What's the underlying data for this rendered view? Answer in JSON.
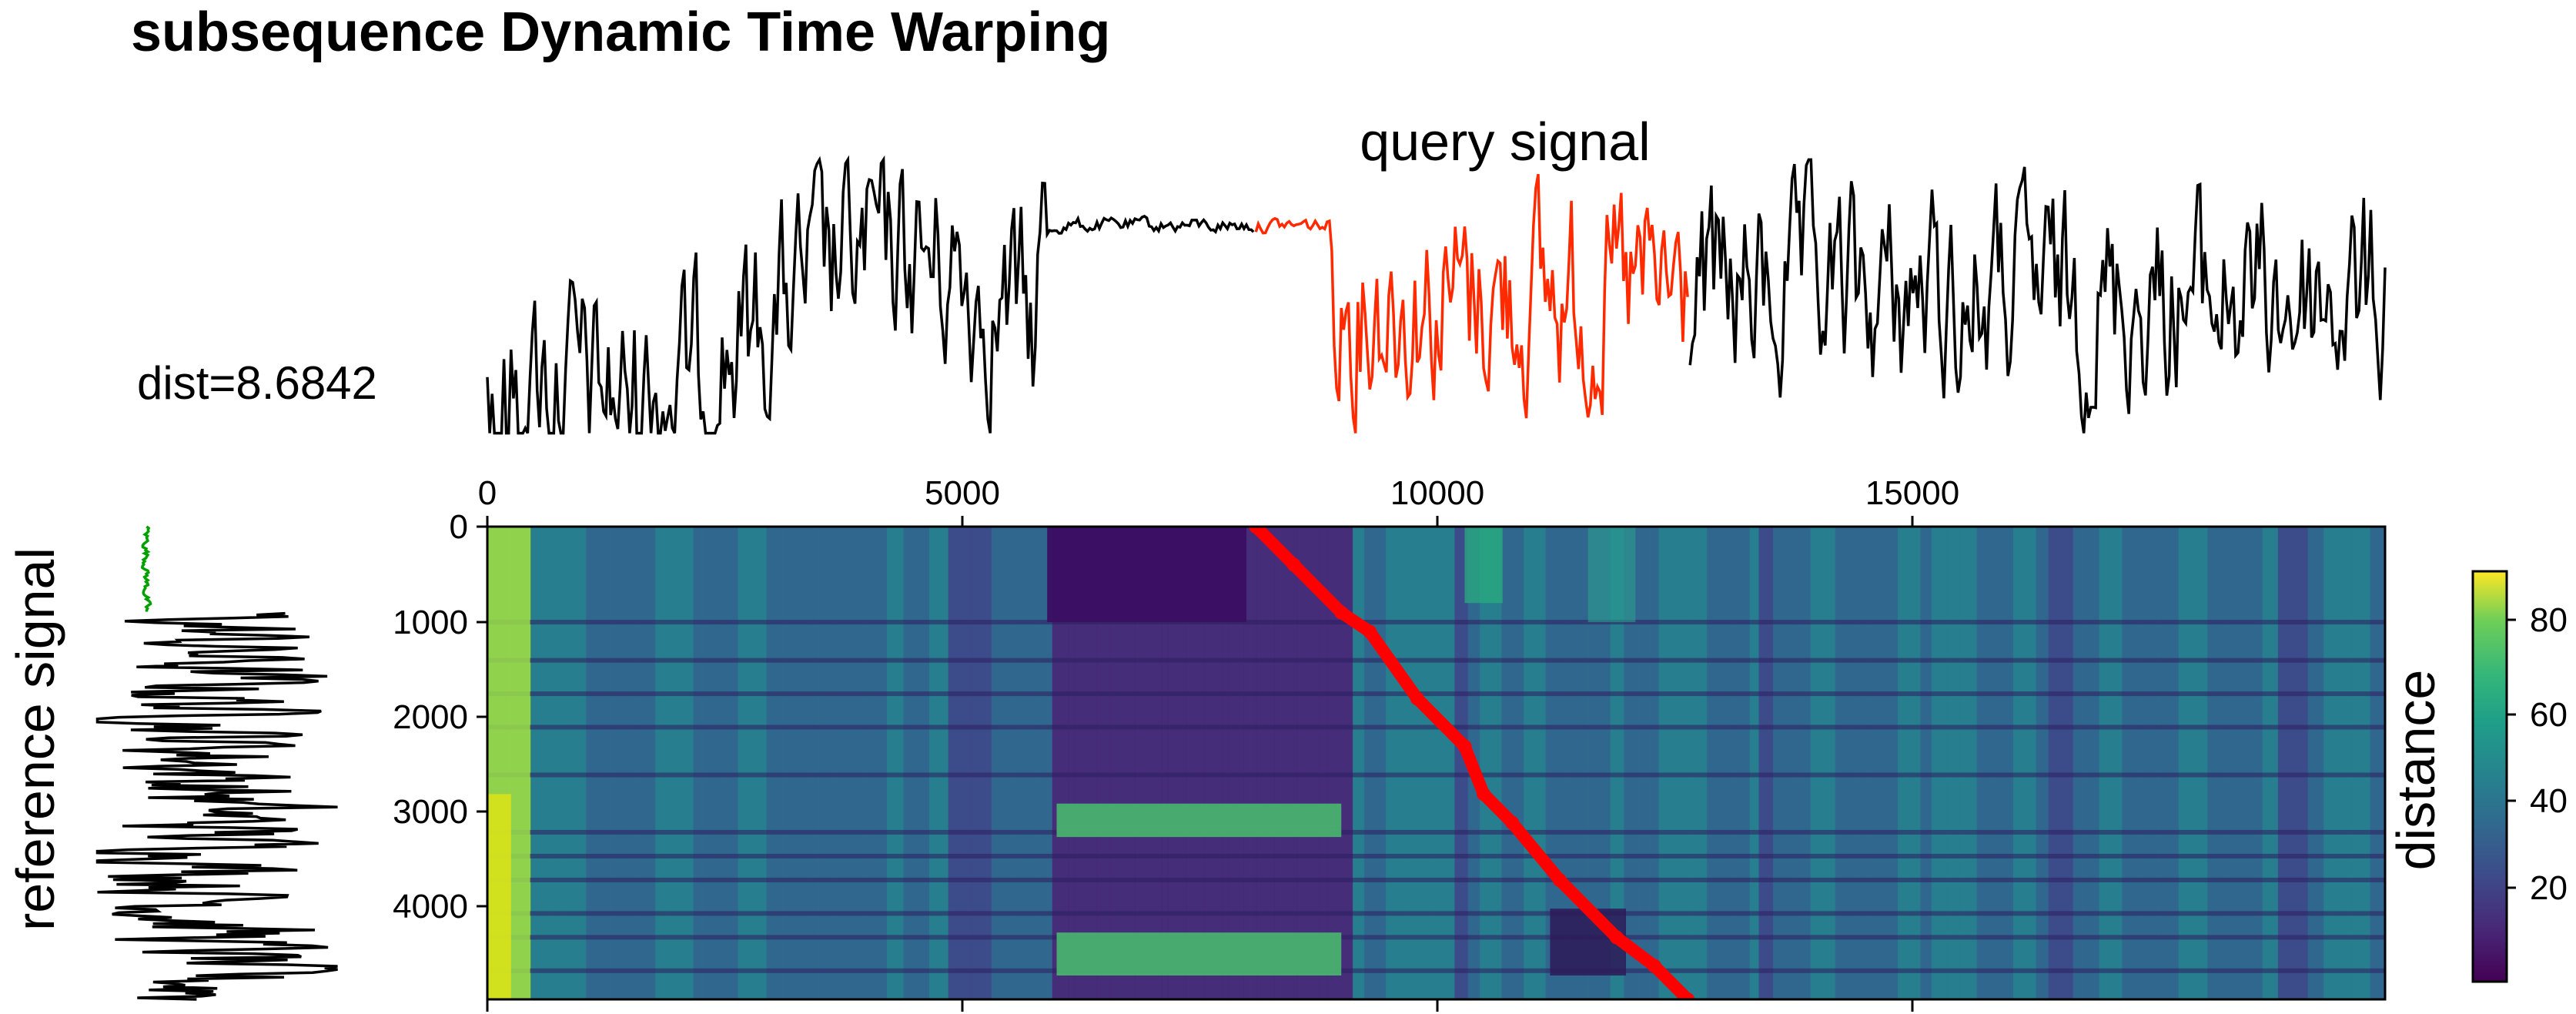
{
  "title": "subsequence Dynamic Time Warping",
  "query_label": "query signal",
  "dist_label": "dist=8.6842",
  "reference_label": "reference signal",
  "colorbar_label": "distance",
  "chart_data": {
    "type": "heatmap",
    "title": "subsequence Dynamic Time Warping",
    "x_axis": {
      "ticks": [
        0,
        5000,
        10000,
        15000
      ],
      "tick_labels": [
        "0",
        "5000",
        "10000",
        "15000"
      ],
      "range": [
        0,
        20000
      ]
    },
    "y_axis": {
      "ticks": [
        0,
        1000,
        2000,
        3000,
        4000
      ],
      "tick_labels": [
        "0",
        "1000",
        "2000",
        "3000",
        "4000"
      ],
      "range": [
        0,
        4950
      ],
      "inverted": true
    },
    "colorbar": {
      "label": "distance",
      "ticks": [
        20,
        40,
        60,
        80
      ],
      "tick_labels": [
        "20",
        "40",
        "60",
        "80"
      ],
      "range": [
        0,
        90
      ],
      "colormap": "viridis"
    },
    "warping_path": {
      "color": "#ff0000",
      "points": [
        [
          8100,
          0
        ],
        [
          8500,
          400
        ],
        [
          9000,
          900
        ],
        [
          9300,
          1100
        ],
        [
          9800,
          1800
        ],
        [
          10300,
          2300
        ],
        [
          10500,
          2800
        ],
        [
          10800,
          3100
        ],
        [
          11300,
          3700
        ],
        [
          11900,
          4300
        ],
        [
          12300,
          4600
        ],
        [
          12650,
          4950
        ]
      ]
    },
    "matched_segment": {
      "start": 8100,
      "end": 12650,
      "color": "#ff2a00"
    },
    "reference_highlight_color": "#00a000",
    "query_line_color": "#000000"
  }
}
